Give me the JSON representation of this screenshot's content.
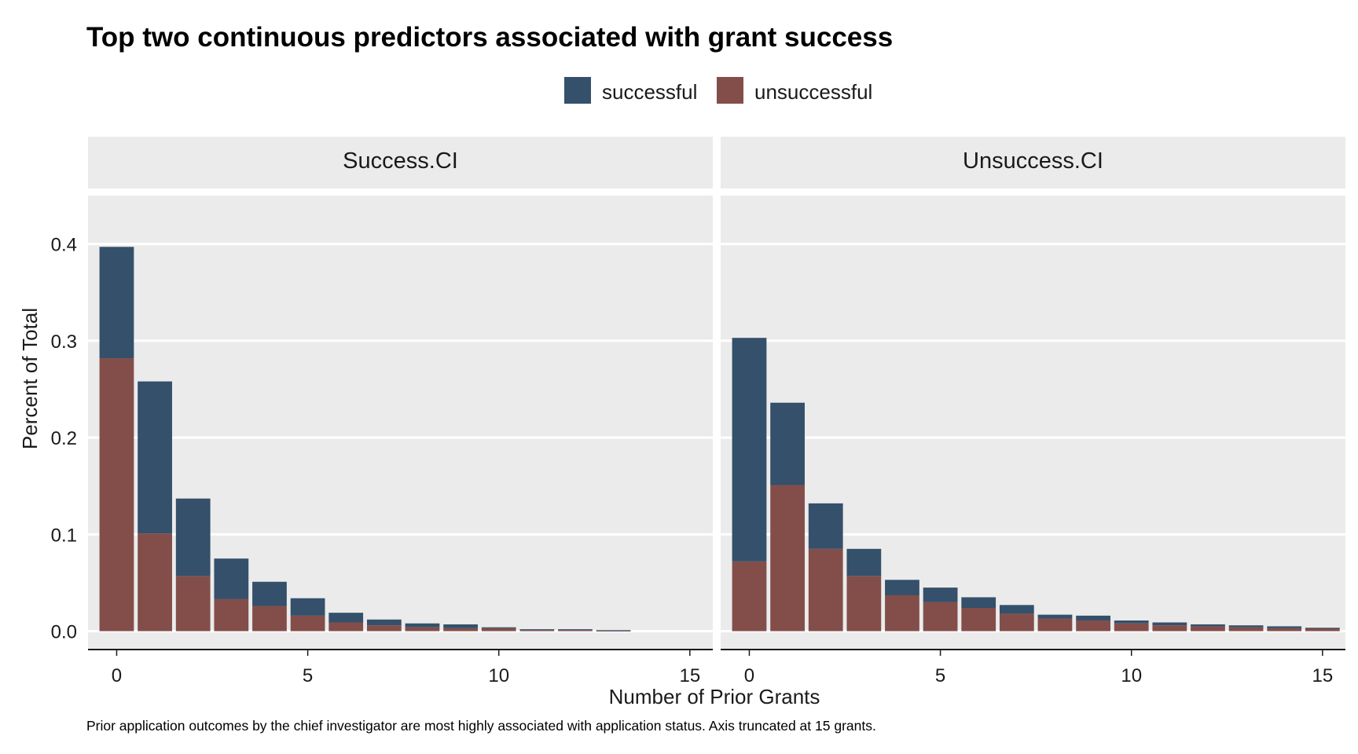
{
  "chart_data": {
    "type": "bar",
    "stacked": true,
    "title": "Top two continuous predictors associated with grant success",
    "caption": "Prior application outcomes by the chief investigator are most highly associated with application status.  Axis truncated at 15 grants.",
    "xlabel": "Number of Prior Grants",
    "ylabel": "Percent of Total",
    "xlim": [
      -0.75,
      15.6
    ],
    "ylim": [
      -0.019,
      0.45
    ],
    "x_ticks": [
      0,
      5,
      10,
      15
    ],
    "y_ticks": [
      0.0,
      0.1,
      0.2,
      0.3,
      0.4
    ],
    "y_tick_labels": [
      "0.0",
      "0.1",
      "0.2",
      "0.3",
      "0.4"
    ],
    "x_tick_labels": [
      "0",
      "5",
      "10",
      "15"
    ],
    "legend": {
      "position": "top",
      "entries": [
        {
          "name": "successful",
          "color": "#34506b"
        },
        {
          "name": "unsuccessful",
          "color": "#834e4a"
        }
      ]
    },
    "grid": true,
    "panel_background": "#ebebeb",
    "panels": [
      {
        "strip": "Success.CI",
        "x": [
          0,
          1,
          2,
          3,
          4,
          5,
          6,
          7,
          8,
          9,
          10,
          11,
          12,
          13
        ],
        "series": [
          {
            "name": "unsuccessful",
            "values": [
              0.282,
              0.101,
              0.057,
              0.033,
              0.026,
              0.016,
              0.009,
              0.006,
              0.004,
              0.003,
              0.003,
              0.001,
              0.001,
              0.0005
            ]
          },
          {
            "name": "successful",
            "values": [
              0.115,
              0.157,
              0.08,
              0.042,
              0.025,
              0.018,
              0.01,
              0.006,
              0.004,
              0.004,
              0.001,
              0.001,
              0.001,
              0.0005
            ]
          }
        ]
      },
      {
        "strip": "Unsuccess.CI",
        "x": [
          0,
          1,
          2,
          3,
          4,
          5,
          6,
          7,
          8,
          9,
          10,
          11,
          12,
          13,
          14,
          15
        ],
        "series": [
          {
            "name": "unsuccessful",
            "values": [
              0.072,
              0.151,
              0.085,
              0.057,
              0.037,
              0.03,
              0.024,
              0.018,
              0.013,
              0.011,
              0.008,
              0.006,
              0.005,
              0.004,
              0.003,
              0.003
            ]
          },
          {
            "name": "successful",
            "values": [
              0.231,
              0.085,
              0.047,
              0.028,
              0.016,
              0.015,
              0.011,
              0.009,
              0.004,
              0.005,
              0.003,
              0.003,
              0.002,
              0.002,
              0.002,
              0.0005
            ]
          }
        ]
      }
    ]
  }
}
